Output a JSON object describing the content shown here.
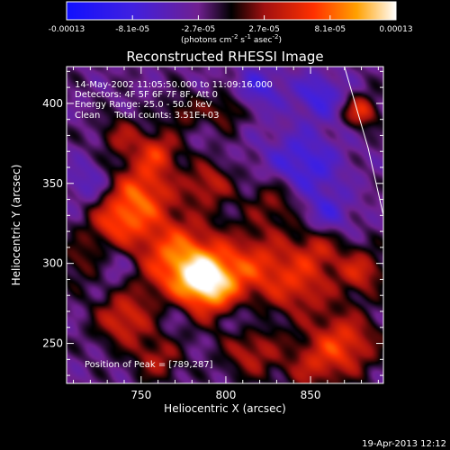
{
  "chart_data": {
    "type": "heatmap",
    "title": "Reconstructed RHESSI Image",
    "xlabel": "Heliocentric X (arcsec)",
    "ylabel": "Heliocentric Y (arcsec)",
    "xlim": [
      706,
      893
    ],
    "ylim": [
      225,
      423
    ],
    "x_ticks": [
      750,
      800,
      850
    ],
    "y_ticks": [
      250,
      300,
      350,
      400
    ],
    "annotations": [
      "14-May-2002 11:05:50.000 to 11:09:16.000",
      "Detectors: 4F 5F 6F 7F 8F, Att 0",
      "Energy Range: 25.0 - 50.0 keV",
      "Clean     Total counts: 3.51E+03"
    ],
    "peak_label": "Position of Peak = [789,287]",
    "peak": [
      789,
      287
    ],
    "limb_curve": [
      [
        870,
        423
      ],
      [
        884,
        372
      ],
      [
        893,
        330
      ]
    ],
    "colorbar": {
      "range": [
        -0.00013,
        0.00013
      ],
      "tick_labels": [
        "-0.00013",
        "-8.1e-05",
        "-2.7e-05",
        "2.7e-05",
        "8.1e-05",
        "0.00013"
      ],
      "unit_parts": [
        "(photons cm",
        "-2",
        " s",
        "-1",
        " asec",
        "-2",
        ")"
      ],
      "stops": [
        {
          "pos": 0.0,
          "color": "#1010ff"
        },
        {
          "pos": 0.2,
          "color": "#4020e0"
        },
        {
          "pos": 0.4,
          "color": "#702090"
        },
        {
          "pos": 0.5,
          "color": "#000000"
        },
        {
          "pos": 0.6,
          "color": "#a01010"
        },
        {
          "pos": 0.75,
          "color": "#ff3000"
        },
        {
          "pos": 0.88,
          "color": "#ffa000"
        },
        {
          "pos": 1.0,
          "color": "#ffffff"
        }
      ]
    },
    "sources": [
      {
        "x": 789,
        "y": 287,
        "amp": 1.0,
        "w": 14
      },
      {
        "x": 770,
        "y": 305,
        "amp": 0.7,
        "w": 18
      },
      {
        "x": 750,
        "y": 345,
        "amp": 0.65,
        "w": 14
      },
      {
        "x": 735,
        "y": 325,
        "amp": 0.55,
        "w": 12
      },
      {
        "x": 820,
        "y": 300,
        "amp": 0.5,
        "w": 16
      },
      {
        "x": 845,
        "y": 285,
        "amp": 0.45,
        "w": 14
      },
      {
        "x": 870,
        "y": 250,
        "amp": 0.6,
        "w": 14
      },
      {
        "x": 880,
        "y": 295,
        "amp": 0.5,
        "w": 10
      },
      {
        "x": 830,
        "y": 340,
        "amp": 0.4,
        "w": 12
      },
      {
        "x": 790,
        "y": 350,
        "amp": 0.45,
        "w": 10
      },
      {
        "x": 855,
        "y": 310,
        "amp": 0.4,
        "w": 10
      },
      {
        "x": 760,
        "y": 370,
        "amp": 0.5,
        "w": 9
      },
      {
        "x": 738,
        "y": 380,
        "amp": 0.35,
        "w": 9
      },
      {
        "x": 880,
        "y": 395,
        "amp": 0.6,
        "w": 7
      },
      {
        "x": 800,
        "y": 395,
        "amp": 0.35,
        "w": 8
      },
      {
        "x": 775,
        "y": 395,
        "amp": 0.3,
        "w": 8
      },
      {
        "x": 740,
        "y": 265,
        "amp": 0.55,
        "w": 12
      },
      {
        "x": 760,
        "y": 240,
        "amp": 0.4,
        "w": 10
      },
      {
        "x": 815,
        "y": 245,
        "amp": 0.45,
        "w": 12
      },
      {
        "x": 850,
        "y": 235,
        "amp": 0.35,
        "w": 12
      },
      {
        "x": 715,
        "y": 300,
        "amp": 0.3,
        "w": 10
      },
      {
        "x": 845,
        "y": 360,
        "amp": -0.45,
        "w": 16
      },
      {
        "x": 820,
        "y": 410,
        "amp": -0.35,
        "w": 10
      },
      {
        "x": 855,
        "y": 405,
        "amp": -0.4,
        "w": 10
      },
      {
        "x": 735,
        "y": 300,
        "amp": -0.25,
        "w": 10
      },
      {
        "x": 720,
        "y": 350,
        "amp": -0.3,
        "w": 10
      },
      {
        "x": 860,
        "y": 330,
        "amp": -0.3,
        "w": 10
      },
      {
        "x": 810,
        "y": 265,
        "amp": -0.25,
        "w": 8
      },
      {
        "x": 770,
        "y": 270,
        "amp": -0.2,
        "w": 8
      }
    ]
  },
  "footer_timestamp": "19-Apr-2013 12:12"
}
